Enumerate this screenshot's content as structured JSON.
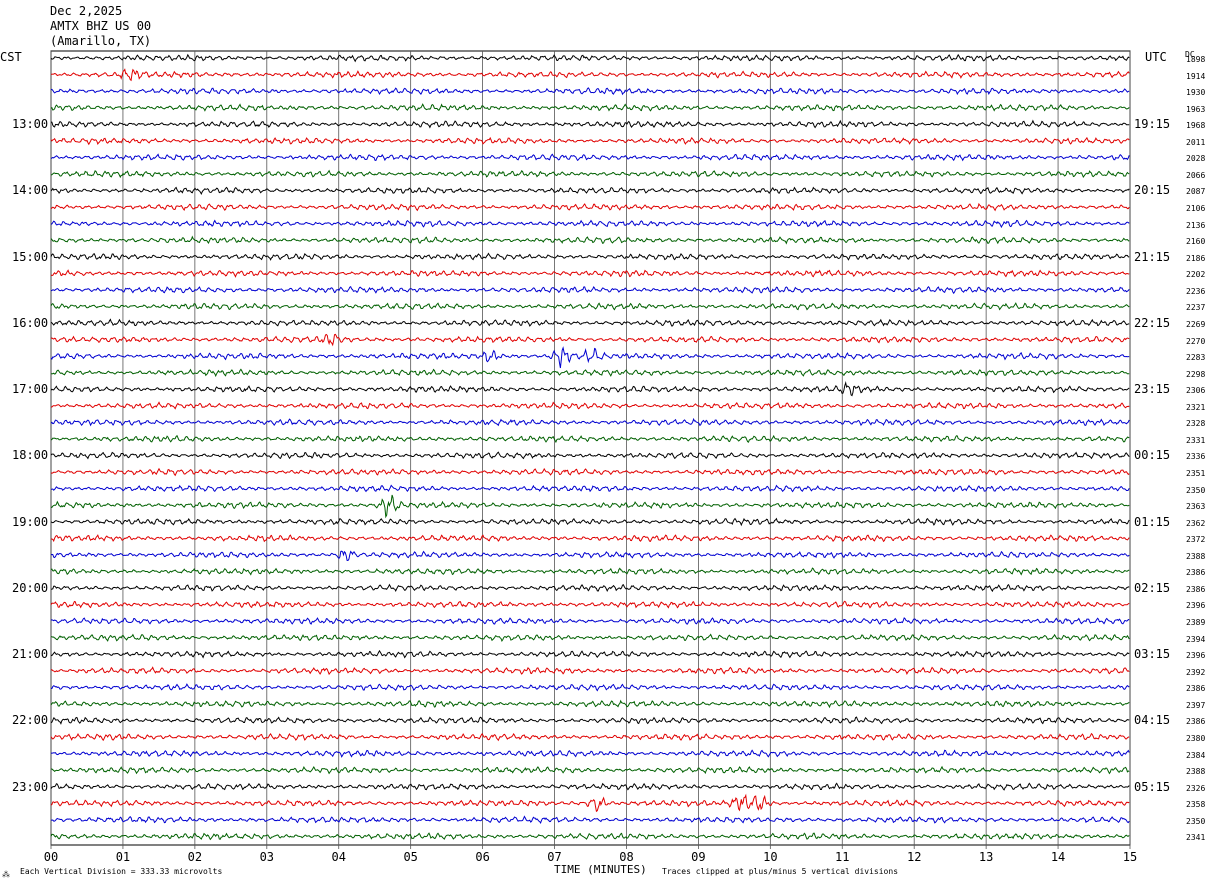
{
  "header": {
    "date": "Dec 2,2025",
    "station": "AMTX BHZ US 00",
    "location": "(Amarillo, TX)"
  },
  "left_timezone": "CST",
  "right_timezone": "UTC",
  "dc_header": "DC",
  "left_hour_labels": [
    "13:00",
    "14:00",
    "15:00",
    "16:00",
    "17:00",
    "18:00",
    "19:00",
    "20:00",
    "21:00",
    "22:00",
    "23:00"
  ],
  "right_hour_labels": [
    "19:15",
    "20:15",
    "21:15",
    "22:15",
    "23:15",
    "00:15",
    "01:15",
    "02:15",
    "03:15",
    "04:15",
    "05:15"
  ],
  "dc_values": [
    "1898",
    "1914",
    "1930",
    "1963",
    "1968",
    "2011",
    "2028",
    "2066",
    "2087",
    "2106",
    "2136",
    "2160",
    "2186",
    "2202",
    "2236",
    "2237",
    "2269",
    "2270",
    "2283",
    "2298",
    "2306",
    "2321",
    "2328",
    "2331",
    "2336",
    "2351",
    "2350",
    "2363",
    "2362",
    "2372",
    "2388",
    "2386",
    "2386",
    "2396",
    "2389",
    "2394",
    "2396",
    "2392",
    "2386",
    "2397",
    "2386",
    "2380",
    "2384",
    "2388",
    "2326",
    "2358",
    "2350",
    "2341"
  ],
  "footer": {
    "vertical_division": "Each Vertical Division =  333.33 microvolts",
    "x_title": "TIME (MINUTES)",
    "clip_note": "Traces clipped at plus/minus 5 vertical divisions"
  },
  "chart_data": {
    "type": "line",
    "title": "AMTX BHZ US 00",
    "xlabel": "TIME (MINUTES)",
    "ylabel": "",
    "x_ticks": [
      "00",
      "01",
      "02",
      "03",
      "04",
      "05",
      "06",
      "07",
      "08",
      "09",
      "10",
      "11",
      "12",
      "13",
      "14",
      "15"
    ],
    "xlim": [
      0,
      15
    ],
    "trace_count": 48,
    "trace_colors": [
      "#000000",
      "#e00000",
      "#0000d0",
      "#006000"
    ],
    "grid": true,
    "vertical_division_microvolts": 333.33,
    "clip_divisions": 5,
    "events": [
      {
        "trace": 1,
        "minute": 1.1,
        "amplitude": 1.8
      },
      {
        "trace": 17,
        "minute": 3.9,
        "amplitude": 2.0
      },
      {
        "trace": 18,
        "minute": 6.1,
        "amplitude": 2.0
      },
      {
        "trace": 18,
        "minute": 7.1,
        "amplitude": 3.5
      },
      {
        "trace": 18,
        "minute": 7.5,
        "amplitude": 2.2
      },
      {
        "trace": 20,
        "minute": 11.1,
        "amplitude": 1.8
      },
      {
        "trace": 27,
        "minute": 4.7,
        "amplitude": 3.5
      },
      {
        "trace": 30,
        "minute": 4.1,
        "amplitude": 2.0
      },
      {
        "trace": 45,
        "minute": 7.6,
        "amplitude": 2.5
      },
      {
        "trace": 45,
        "minute": 9.6,
        "amplitude": 3.0
      },
      {
        "trace": 45,
        "minute": 9.85,
        "amplitude": 2.5
      }
    ]
  }
}
